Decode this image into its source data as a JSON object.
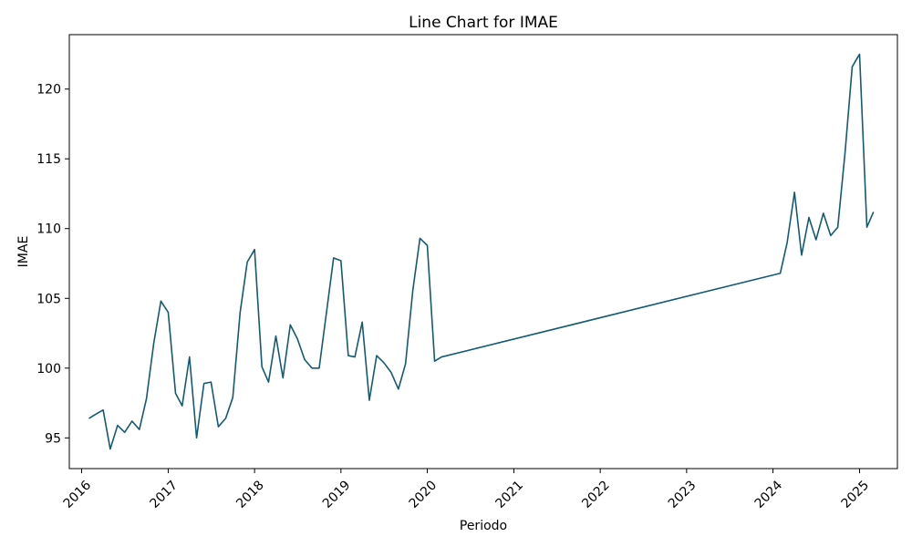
{
  "chart_data": {
    "type": "line",
    "title": "Line Chart for IMAE",
    "xlabel": "Periodo",
    "ylabel": "IMAE",
    "xlim": [
      "2015-11-10",
      "2025-06-10"
    ],
    "ylim": [
      92.8,
      123.9
    ],
    "x_ticks": [
      "2016",
      "2017",
      "2018",
      "2019",
      "2020",
      "2021",
      "2022",
      "2023",
      "2024",
      "2025"
    ],
    "y_ticks": [
      95,
      100,
      105,
      110,
      115,
      120
    ],
    "grid": false,
    "legend": "none",
    "line_color": "#135a74",
    "series": [
      {
        "x": [
          "2016-02-01",
          "2016-03-01",
          "2016-04-01",
          "2016-05-01",
          "2016-06-01",
          "2016-07-01",
          "2016-08-01",
          "2016-09-01",
          "2016-10-01",
          "2016-11-01",
          "2016-12-01",
          "2017-01-01",
          "2017-02-01",
          "2017-03-01",
          "2017-04-01",
          "2017-05-01",
          "2017-06-01",
          "2017-07-01",
          "2017-08-01",
          "2017-09-01",
          "2017-10-01",
          "2017-11-01",
          "2017-12-01",
          "2018-01-01",
          "2018-02-01",
          "2018-03-01",
          "2018-04-01",
          "2018-05-01",
          "2018-06-01",
          "2018-07-01",
          "2018-08-01",
          "2018-09-01",
          "2018-10-01",
          "2018-11-01",
          "2018-12-01",
          "2019-01-01",
          "2019-02-01",
          "2019-03-01",
          "2019-04-01",
          "2019-05-01",
          "2019-06-01",
          "2019-07-01",
          "2019-08-01",
          "2019-09-01",
          "2019-10-01",
          "2019-11-01",
          "2019-12-01",
          "2020-01-01",
          "2020-02-01",
          "2020-03-01",
          "2024-02-01",
          "2024-03-01",
          "2024-04-01",
          "2024-05-01",
          "2024-06-01",
          "2024-07-01",
          "2024-08-01",
          "2024-09-01",
          "2024-10-01",
          "2024-11-01",
          "2024-12-01",
          "2025-01-01",
          "2025-02-01",
          "2025-03-01"
        ],
        "y": [
          96.4,
          96.7,
          97.0,
          94.2,
          95.9,
          95.4,
          96.2,
          95.6,
          97.8,
          101.8,
          104.8,
          104.0,
          98.2,
          97.3,
          100.8,
          95.0,
          98.9,
          99.0,
          95.8,
          96.4,
          97.9,
          104.0,
          107.6,
          108.5,
          100.1,
          99.0,
          102.3,
          99.3,
          103.1,
          102.1,
          100.6,
          100.0,
          100.0,
          104.0,
          107.9,
          107.7,
          100.9,
          100.8,
          103.3,
          97.7,
          100.9,
          100.4,
          99.7,
          98.5,
          100.3,
          105.6,
          109.3,
          108.8,
          100.5,
          100.8,
          106.8,
          109.0,
          112.6,
          108.1,
          110.8,
          109.2,
          111.1,
          109.5,
          110.1,
          115.5,
          121.6,
          122.5,
          110.1,
          111.2
        ]
      }
    ]
  }
}
